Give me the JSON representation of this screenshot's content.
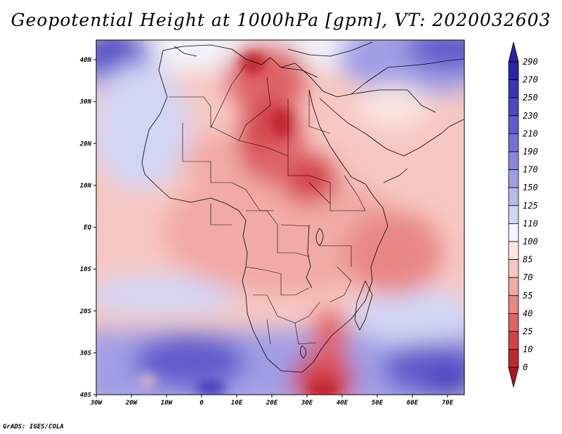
{
  "title": "Geopotential Height at 1000hPa [gpm], VT: 2020032603",
  "footer": "GrADS: IGES/COLA",
  "map": {
    "lat_labels": [
      "40N",
      "30N",
      "20N",
      "10N",
      "EQ",
      "10S",
      "20S",
      "30S",
      "40S"
    ],
    "lon_labels": [
      "30W",
      "20W",
      "10W",
      "0",
      "10E",
      "20E",
      "30E",
      "40E",
      "50E",
      "60E",
      "70E"
    ]
  },
  "colorbar": {
    "levels": [
      "290",
      "270",
      "250",
      "230",
      "210",
      "190",
      "170",
      "150",
      "125",
      "110",
      "100",
      "85",
      "70",
      "55",
      "40",
      "25",
      "10",
      "0"
    ],
    "colors": [
      "#2a22a8",
      "#3c34b6",
      "#4e46c2",
      "#625bcc",
      "#7670d6",
      "#8a86de",
      "#a09ee6",
      "#b9b9ee",
      "#d3d5f5",
      "#f3f4fc",
      "#fce6e2",
      "#f7c8c3",
      "#f2aaa6",
      "#e98785",
      "#df6466",
      "#d3424a",
      "#c02832",
      "#a51826"
    ]
  }
}
